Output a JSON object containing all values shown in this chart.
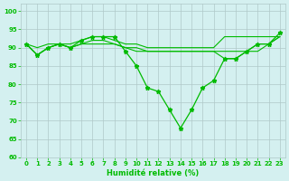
{
  "xlabel": "Humidité relative (%)",
  "bg_color": "#d4f0f0",
  "grid_color": "#b0c8c8",
  "line_color": "#00bb00",
  "ylim": [
    60,
    102
  ],
  "xlim": [
    -0.5,
    23.5
  ],
  "yticks": [
    60,
    65,
    70,
    75,
    80,
    85,
    90,
    95,
    100
  ],
  "xticks": [
    0,
    1,
    2,
    3,
    4,
    5,
    6,
    7,
    8,
    9,
    10,
    11,
    12,
    13,
    14,
    15,
    16,
    17,
    18,
    19,
    20,
    21,
    22,
    23
  ],
  "series": [
    [
      91,
      88,
      90,
      91,
      90,
      92,
      93,
      93,
      93,
      89,
      85,
      79,
      78,
      73,
      68,
      73,
      79,
      81,
      87,
      87,
      89,
      91,
      91,
      94
    ],
    [
      91,
      90,
      91,
      91,
      91,
      92,
      93,
      93,
      92,
      91,
      91,
      90,
      90,
      90,
      90,
      90,
      90,
      90,
      93,
      93,
      93,
      93,
      93,
      93
    ],
    [
      91,
      88,
      90,
      91,
      90,
      91,
      92,
      92,
      91,
      90,
      90,
      89,
      89,
      89,
      89,
      89,
      89,
      89,
      89,
      89,
      89,
      91,
      91,
      93
    ],
    [
      91,
      88,
      90,
      91,
      90,
      91,
      91,
      91,
      91,
      90,
      89,
      89,
      89,
      89,
      89,
      89,
      89,
      89,
      87,
      87,
      89,
      89,
      91,
      93
    ]
  ]
}
